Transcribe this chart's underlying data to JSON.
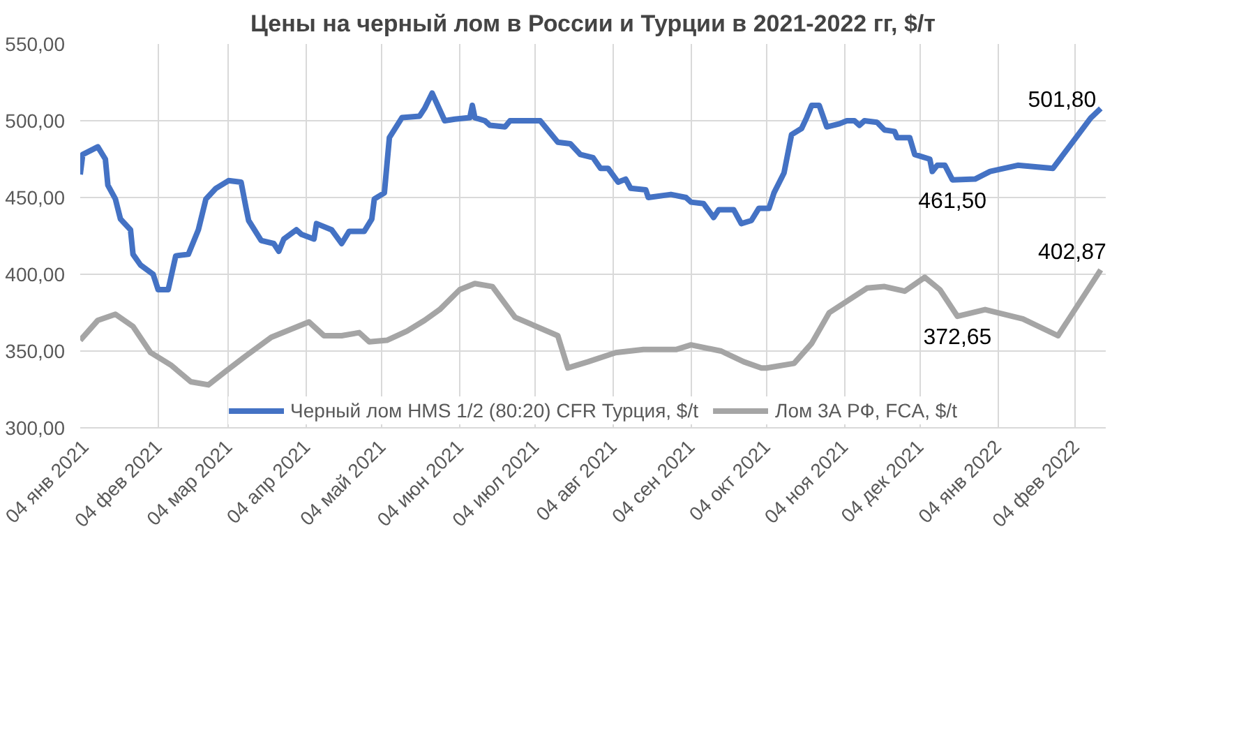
{
  "chart_data": {
    "type": "line",
    "title": "Цены на черный лом в России и Турции в 2021-2022 гг, $/т",
    "series": [
      {
        "name": "Черный лом HMS 1/2 (80:20) CFR Турция, $/t",
        "color": "#4472c4",
        "x": [
          "2021-01-04",
          "2021-01-05",
          "2021-01-11",
          "2021-01-14",
          "2021-01-15",
          "2021-01-18",
          "2021-01-20",
          "2021-01-24",
          "2021-01-25",
          "2021-01-28",
          "2021-02-02",
          "2021-02-04",
          "2021-02-08",
          "2021-02-11",
          "2021-02-16",
          "2021-02-20",
          "2021-02-23",
          "2021-02-27",
          "2021-03-04",
          "2021-03-09",
          "2021-03-11",
          "2021-03-12",
          "2021-03-17",
          "2021-03-22",
          "2021-03-24",
          "2021-03-26",
          "2021-03-31",
          "2021-04-02",
          "2021-04-07",
          "2021-04-08",
          "2021-04-14",
          "2021-04-18",
          "2021-04-21",
          "2021-04-27",
          "2021-04-30",
          "2021-05-01",
          "2021-05-05",
          "2021-05-07",
          "2021-05-12",
          "2021-05-19",
          "2021-05-21",
          "2021-05-24",
          "2021-05-29",
          "2021-06-02",
          "2021-06-08",
          "2021-06-09",
          "2021-06-10",
          "2021-06-14",
          "2021-06-16",
          "2021-06-22",
          "2021-06-24",
          "2021-07-06",
          "2021-07-13",
          "2021-07-18",
          "2021-07-22",
          "2021-07-27",
          "2021-07-30",
          "2021-08-02",
          "2021-08-06",
          "2021-08-09",
          "2021-08-11",
          "2021-08-17",
          "2021-08-18",
          "2021-08-27",
          "2021-09-02",
          "2021-09-04",
          "2021-09-09",
          "2021-09-13",
          "2021-09-15",
          "2021-09-21",
          "2021-09-24",
          "2021-09-28",
          "2021-10-01",
          "2021-10-05",
          "2021-10-07",
          "2021-10-11",
          "2021-10-14",
          "2021-10-18",
          "2021-10-20",
          "2021-10-22",
          "2021-10-25",
          "2021-10-28",
          "2021-11-02",
          "2021-11-05",
          "2021-11-08",
          "2021-11-10",
          "2021-11-12",
          "2021-11-17",
          "2021-11-20",
          "2021-11-24",
          "2021-11-25",
          "2021-11-30",
          "2021-12-02",
          "2021-12-08",
          "2021-12-09",
          "2021-12-11",
          "2021-12-14",
          "2021-12-17",
          "2021-12-26",
          "2022-01-01",
          "2022-01-12",
          "2022-01-26",
          "2022-02-10",
          "2022-02-14"
        ],
        "values": [
          465,
          478,
          483,
          475,
          458,
          449,
          436,
          429,
          413,
          406,
          400,
          390,
          390,
          412,
          413,
          429,
          449,
          456,
          461,
          460,
          443,
          435,
          422,
          420,
          415,
          423,
          429,
          426,
          423,
          433,
          429,
          420,
          428,
          428,
          436,
          449,
          453,
          489,
          502,
          503,
          508,
          518,
          500,
          501,
          502,
          510,
          502,
          500,
          497,
          496,
          500,
          500,
          486,
          485,
          478,
          476,
          469,
          469,
          460,
          462,
          456,
          455,
          450,
          452,
          450,
          447,
          446,
          437,
          442,
          442,
          433,
          435,
          443,
          443,
          453,
          466,
          491,
          495,
          502,
          510,
          510,
          496,
          498,
          500,
          500,
          497,
          500,
          499,
          494,
          493,
          489,
          489,
          478,
          475,
          467,
          471,
          471,
          461.5,
          462,
          467,
          471,
          469,
          501.8,
          508
        ]
      },
      {
        "name": "Лом 3А РФ, FCA, $/t",
        "color": "#a5a5a5",
        "x": [
          "2021-01-04",
          "2021-01-11",
          "2021-01-18",
          "2021-01-25",
          "2021-02-01",
          "2021-02-09",
          "2021-02-17",
          "2021-02-24",
          "2021-03-03",
          "2021-03-11",
          "2021-03-21",
          "2021-04-05",
          "2021-04-11",
          "2021-04-18",
          "2021-04-25",
          "2021-04-29",
          "2021-05-06",
          "2021-05-14",
          "2021-05-21",
          "2021-05-27",
          "2021-06-04",
          "2021-06-10",
          "2021-06-17",
          "2021-06-26",
          "2021-07-13",
          "2021-07-17",
          "2021-07-25",
          "2021-08-05",
          "2021-08-16",
          "2021-08-29",
          "2021-09-04",
          "2021-09-16",
          "2021-09-25",
          "2021-10-02",
          "2021-10-04",
          "2021-10-15",
          "2021-10-22",
          "2021-10-29",
          "2021-11-13",
          "2021-11-20",
          "2021-11-28",
          "2021-12-06",
          "2021-12-12",
          "2021-12-19",
          "2021-12-30",
          "2022-01-14",
          "2022-01-28",
          "2022-02-14"
        ],
        "values": [
          357,
          370,
          374,
          366,
          349,
          341,
          330,
          328,
          337,
          347,
          359,
          369,
          360,
          360,
          362,
          356,
          357,
          363,
          370,
          377,
          390,
          394,
          392,
          372,
          360,
          339,
          343,
          349,
          351,
          351,
          354,
          350,
          343,
          339,
          339,
          342,
          355,
          375,
          391,
          392,
          389,
          398,
          390,
          372.65,
          377,
          371,
          360,
          402.87
        ]
      }
    ],
    "xlim": [
      "2021-01-04",
      "2022-02-16"
    ],
    "xticks": [
      {
        "value": "2021-01-04",
        "label": "04 янв 2021"
      },
      {
        "value": "2021-02-04",
        "label": "04 фев 2021"
      },
      {
        "value": "2021-03-04",
        "label": "04 мар 2021"
      },
      {
        "value": "2021-04-04",
        "label": "04 апр 2021"
      },
      {
        "value": "2021-05-04",
        "label": "04 май 2021"
      },
      {
        "value": "2021-06-04",
        "label": "04 июн 2021"
      },
      {
        "value": "2021-07-04",
        "label": "04 июл 2021"
      },
      {
        "value": "2021-08-04",
        "label": "04 авг 2021"
      },
      {
        "value": "2021-09-04",
        "label": "04 сен 2021"
      },
      {
        "value": "2021-10-04",
        "label": "04 окт 2021"
      },
      {
        "value": "2021-11-04",
        "label": "04 ноя 2021"
      },
      {
        "value": "2021-12-04",
        "label": "04 дек 2021"
      },
      {
        "value": "2022-01-04",
        "label": "04 янв 2022"
      },
      {
        "value": "2022-02-04",
        "label": "04 фев 2022"
      }
    ],
    "ylim": [
      300,
      550
    ],
    "yticks": [
      {
        "value": 300,
        "label": "300,00"
      },
      {
        "value": 350,
        "label": "350,00"
      },
      {
        "value": 400,
        "label": "400,00"
      },
      {
        "value": 450,
        "label": "450,00"
      },
      {
        "value": 500,
        "label": "500,00"
      },
      {
        "value": 550,
        "label": "550,00"
      }
    ],
    "annotations": [
      {
        "text": "501,80",
        "x": "2022-02-10",
        "y": 501.8
      },
      {
        "text": "461,50",
        "x": "2021-12-17",
        "y": 461.5
      },
      {
        "text": "402,87",
        "x": "2022-02-14",
        "y": 402.87
      },
      {
        "text": "372,65",
        "x": "2021-12-19",
        "y": 372.65
      }
    ],
    "grid": true,
    "legend": "bottom",
    "line_style": "solid"
  }
}
